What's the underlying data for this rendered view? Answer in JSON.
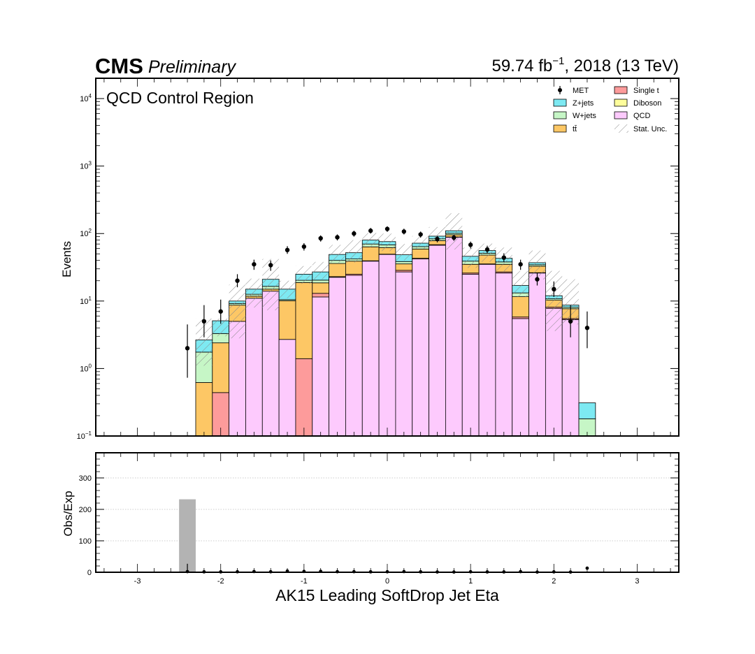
{
  "header": {
    "experiment": "CMS",
    "status": "Preliminary",
    "lumi_prefix": "59.74 fb",
    "lumi_exp": "−1",
    "lumi_suffix": ", 2018 (13 TeV)"
  },
  "region_label": "QCD Control Region",
  "legend": [
    {
      "name": "MET",
      "kind": "marker",
      "color": "#000000"
    },
    {
      "name": "Z+jets",
      "kind": "box",
      "color": "#7de9f2"
    },
    {
      "name": "W+jets",
      "kind": "box",
      "color": "#c6f6c6"
    },
    {
      "name": "tt̄",
      "kind": "box",
      "color": "#fdc765"
    },
    {
      "name": "Single t",
      "kind": "box",
      "color": "#fd9b9b"
    },
    {
      "name": "Diboson",
      "kind": "box",
      "color": "#fdfd9b"
    },
    {
      "name": "QCD",
      "kind": "box",
      "color": "#fdcafd"
    },
    {
      "name": "Stat. Unc.",
      "kind": "hatch",
      "color": "#888888"
    }
  ],
  "colors": {
    "qcd": "#fdcafd",
    "single_t": "#fd9b9b",
    "ttbar": "#fdc765",
    "wjets": "#c6f6c6",
    "zjets": "#7de9f2",
    "diboson": "#fdfd9b",
    "ratio_bar": "#b3b3b3",
    "hatch": "#999999"
  },
  "chart_data": [
    {
      "type": "bar",
      "subtype": "stacked-histogram-log",
      "ylabel": "Events",
      "yscale": "log",
      "ylim": [
        0.1,
        20000
      ],
      "xlim": [
        -3.5,
        3.5
      ],
      "y_tick_labels": [
        {
          "base": "10",
          "exp": "−1",
          "value": 0.1
        },
        {
          "base": "10",
          "exp": "0",
          "value": 1
        },
        {
          "base": "10",
          "exp": "1",
          "value": 10
        },
        {
          "base": "10",
          "exp": "2",
          "value": 100
        },
        {
          "base": "10",
          "exp": "3",
          "value": 1000
        },
        {
          "base": "10",
          "exp": "4",
          "value": 10000
        }
      ],
      "bins": [
        {
          "lo": -2.3,
          "hi": -2.1,
          "qcd": 0,
          "single_t": 0,
          "ttbar": 0.62,
          "wjets": 1.13,
          "zjets": 0.9,
          "unc_lo": 1.1,
          "unc_hi": 5.5
        },
        {
          "lo": -2.1,
          "hi": -1.9,
          "qcd": 0,
          "single_t": 0.44,
          "ttbar": 1.96,
          "wjets": 0.9,
          "zjets": 1.8,
          "unc_lo": 3.0,
          "unc_hi": 5.5
        },
        {
          "lo": -1.9,
          "hi": -1.7,
          "qcd": 5.0,
          "single_t": 0,
          "ttbar": 3.7,
          "wjets": 0.5,
          "zjets": 0.8,
          "unc_lo": 2.8,
          "unc_hi": 17.5
        },
        {
          "lo": -1.7,
          "hi": -1.5,
          "qcd": 11.0,
          "single_t": 0,
          "ttbar": 0.8,
          "wjets": 0.8,
          "zjets": 2.4,
          "unc_lo": 8.0,
          "unc_hi": 21.5
        },
        {
          "lo": -1.5,
          "hi": -1.3,
          "qcd": 14.0,
          "single_t": 0,
          "ttbar": 1.0,
          "wjets": 1.5,
          "zjets": 4.5,
          "unc_lo": 7.3,
          "unc_hi": 42.0
        },
        {
          "lo": -1.3,
          "hi": -1.1,
          "qcd": 2.7,
          "single_t": 0,
          "ttbar": 7.4,
          "wjets": 0.4,
          "zjets": 4.5,
          "unc_lo": 11.0,
          "unc_hi": 20.0
        },
        {
          "lo": -1.1,
          "hi": -0.9,
          "qcd": 0,
          "single_t": 1.4,
          "ttbar": 17.4,
          "wjets": 1.5,
          "zjets": 4.7,
          "unc_lo": 18.0,
          "unc_hi": 33.0
        },
        {
          "lo": -0.9,
          "hi": -0.7,
          "qcd": 11.5,
          "single_t": 1.5,
          "ttbar": 5.6,
          "wjets": 1.8,
          "zjets": 6.6,
          "unc_lo": 21.0,
          "unc_hi": 38.0
        },
        {
          "lo": -0.7,
          "hi": -0.5,
          "qcd": 22.5,
          "single_t": 0.5,
          "ttbar": 13.0,
          "wjets": 4.0,
          "zjets": 9.0,
          "unc_lo": 37.0,
          "unc_hi": 68.0
        },
        {
          "lo": -0.5,
          "hi": -0.3,
          "qcd": 24.0,
          "single_t": 1.0,
          "ttbar": 14.0,
          "wjets": 3.0,
          "zjets": 10.0,
          "unc_lo": 37.0,
          "unc_hi": 80.0
        },
        {
          "lo": -0.3,
          "hi": -0.1,
          "qcd": 39.0,
          "single_t": 0.5,
          "ttbar": 24.0,
          "wjets": 6.5,
          "zjets": 10.0,
          "unc_lo": 63.0,
          "unc_hi": 102.0
        },
        {
          "lo": -0.1,
          "hi": 0.1,
          "qcd": 49.0,
          "single_t": 0.5,
          "ttbar": 12.5,
          "wjets": 6.0,
          "zjets": 8.0,
          "unc_lo": 55.0,
          "unc_hi": 100.0
        },
        {
          "lo": 0.1,
          "hi": 0.3,
          "qcd": 27.0,
          "single_t": 1.5,
          "ttbar": 7.0,
          "wjets": 3.0,
          "zjets": 10.0,
          "unc_lo": 40.0,
          "unc_hi": 70.0
        },
        {
          "lo": 0.3,
          "hi": 0.5,
          "qcd": 42.0,
          "single_t": 1.0,
          "ttbar": 16.0,
          "wjets": 5.0,
          "zjets": 8.0,
          "unc_lo": 60.0,
          "unc_hi": 92.0
        },
        {
          "lo": 0.5,
          "hi": 0.7,
          "qcd": 67.0,
          "single_t": 1.5,
          "ttbar": 10.0,
          "wjets": 5.0,
          "zjets": 8.0,
          "unc_lo": 75.0,
          "unc_hi": 125.0
        },
        {
          "lo": 0.7,
          "hi": 0.9,
          "qcd": 88.0,
          "single_t": 1.0,
          "ttbar": 7.0,
          "wjets": 5.0,
          "zjets": 9.0,
          "unc_lo": 58.0,
          "unc_hi": 200.0
        },
        {
          "lo": 0.9,
          "hi": 1.1,
          "qcd": 25.0,
          "single_t": 1.0,
          "ttbar": 9.0,
          "wjets": 4.0,
          "zjets": 7.0,
          "unc_lo": 31.0,
          "unc_hi": 62.0
        },
        {
          "lo": 1.1,
          "hi": 1.3,
          "qcd": 35.0,
          "single_t": 0.5,
          "ttbar": 12.5,
          "wjets": 3.0,
          "zjets": 5.0,
          "unc_lo": 38.0,
          "unc_hi": 71.0
        },
        {
          "lo": 1.3,
          "hi": 1.5,
          "qcd": 26.0,
          "single_t": 1.0,
          "ttbar": 8.0,
          "wjets": 3.0,
          "zjets": 5.0,
          "unc_lo": 27.0,
          "unc_hi": 62.0
        },
        {
          "lo": 1.5,
          "hi": 1.7,
          "qcd": 5.5,
          "single_t": 0.3,
          "ttbar": 5.8,
          "wjets": 1.6,
          "zjets": 3.8,
          "unc_lo": 11.5,
          "unc_hi": 28.0
        },
        {
          "lo": 1.7,
          "hi": 1.9,
          "qcd": 26.0,
          "single_t": 0.3,
          "ttbar": 6.5,
          "wjets": 1.7,
          "zjets": 2.5,
          "unc_lo": 21.0,
          "unc_hi": 56.0
        },
        {
          "lo": 1.9,
          "hi": 2.1,
          "qcd": 7.8,
          "single_t": 0.3,
          "ttbar": 2.2,
          "wjets": 0.5,
          "zjets": 1.2,
          "unc_lo": 3.6,
          "unc_hi": 28.0
        },
        {
          "lo": 2.1,
          "hi": 2.3,
          "qcd": 5.3,
          "single_t": 0.2,
          "ttbar": 2.2,
          "wjets": 0.4,
          "zjets": 0.6,
          "unc_lo": 4.5,
          "unc_hi": 21.0
        },
        {
          "lo": 2.3,
          "hi": 2.5,
          "qcd": 0,
          "single_t": 0,
          "ttbar": 0,
          "wjets": 0.18,
          "zjets": 0.13,
          "unc_lo": 0,
          "unc_hi": 0
        }
      ],
      "data_points": [
        {
          "x": -2.4,
          "y": 2.0,
          "lo": 0.73,
          "hi": 4.5
        },
        {
          "x": -2.2,
          "y": 5.0,
          "lo": 2.9,
          "hi": 8.7
        },
        {
          "x": -2.0,
          "y": 7.0,
          "lo": 4.6,
          "hi": 10.5
        },
        {
          "x": -1.8,
          "y": 20.0,
          "lo": 16.0,
          "hi": 25.0
        },
        {
          "x": -1.6,
          "y": 35.0,
          "lo": 29.0,
          "hi": 41.0
        },
        {
          "x": -1.4,
          "y": 34.0,
          "lo": 28.0,
          "hi": 40.0
        },
        {
          "x": -1.2,
          "y": 57.0,
          "lo": 50.0,
          "hi": 65.0
        },
        {
          "x": -1.0,
          "y": 64.0,
          "lo": 56.0,
          "hi": 72.0
        },
        {
          "x": -0.8,
          "y": 85.0,
          "lo": 76.0,
          "hi": 94.0
        },
        {
          "x": -0.6,
          "y": 88.0,
          "lo": 79.0,
          "hi": 97.0
        },
        {
          "x": -0.4,
          "y": 100.0,
          "lo": 90.0,
          "hi": 110.0
        },
        {
          "x": -0.2,
          "y": 110.0,
          "lo": 100.0,
          "hi": 121.0
        },
        {
          "x": 0.0,
          "y": 117.0,
          "lo": 106.0,
          "hi": 128.0
        },
        {
          "x": 0.2,
          "y": 107.0,
          "lo": 97.0,
          "hi": 118.0
        },
        {
          "x": 0.4,
          "y": 97.0,
          "lo": 87.0,
          "hi": 107.0
        },
        {
          "x": 0.6,
          "y": 83.0,
          "lo": 74.0,
          "hi": 92.0
        },
        {
          "x": 0.8,
          "y": 87.0,
          "lo": 78.0,
          "hi": 96.0
        },
        {
          "x": 1.0,
          "y": 68.0,
          "lo": 60.0,
          "hi": 76.0
        },
        {
          "x": 1.2,
          "y": 58.0,
          "lo": 51.0,
          "hi": 66.0
        },
        {
          "x": 1.4,
          "y": 44.0,
          "lo": 38.0,
          "hi": 51.0
        },
        {
          "x": 1.6,
          "y": 35.0,
          "lo": 29.0,
          "hi": 41.0
        },
        {
          "x": 1.8,
          "y": 21.0,
          "lo": 17.0,
          "hi": 26.0
        },
        {
          "x": 2.0,
          "y": 15.0,
          "lo": 11.5,
          "hi": 19.5
        },
        {
          "x": 2.2,
          "y": 5.0,
          "lo": 2.9,
          "hi": 8.7
        },
        {
          "x": 2.4,
          "y": 4.0,
          "lo": 2.0,
          "hi": 7.0
        }
      ]
    },
    {
      "type": "bar",
      "subtype": "ratio",
      "ylabel": "Obs/Exp",
      "xlabel": "AK15 Leading SoftDrop Jet Eta",
      "ylim": [
        0,
        380
      ],
      "xlim": [
        -3.5,
        3.5
      ],
      "grid": true,
      "y_ticks": [
        0,
        100,
        200,
        300
      ],
      "y_tick_labels": [
        "0",
        "100",
        "200",
        "300"
      ],
      "x_ticks": [
        -3,
        -2,
        -1,
        0,
        1,
        2,
        3
      ],
      "x_tick_labels": [
        "-3",
        "-2",
        "-1",
        "0",
        "1",
        "2",
        "3"
      ],
      "bars": [
        {
          "lo": -2.5,
          "hi": -2.3,
          "value": 232
        }
      ],
      "ratio_points": [
        {
          "x": -2.4,
          "y": 2,
          "err": 25
        },
        {
          "x": -2.2,
          "y": 1.4
        },
        {
          "x": -2.0,
          "y": 1.2
        },
        {
          "x": -1.8,
          "y": 1.6
        },
        {
          "x": -1.6,
          "y": 2.3
        },
        {
          "x": -1.4,
          "y": 1.6
        },
        {
          "x": -1.2,
          "y": 3.8
        },
        {
          "x": -1.0,
          "y": 2.6
        },
        {
          "x": -0.8,
          "y": 3.0
        },
        {
          "x": -0.6,
          "y": 1.8
        },
        {
          "x": -0.4,
          "y": 1.9
        },
        {
          "x": -0.2,
          "y": 1.4
        },
        {
          "x": 0.0,
          "y": 1.5
        },
        {
          "x": 0.2,
          "y": 2.2
        },
        {
          "x": 0.4,
          "y": 1.4
        },
        {
          "x": 0.6,
          "y": 0.9
        },
        {
          "x": 0.8,
          "y": 0.8
        },
        {
          "x": 1.0,
          "y": 1.5
        },
        {
          "x": 1.2,
          "y": 1.1
        },
        {
          "x": 1.4,
          "y": 1.1
        },
        {
          "x": 1.6,
          "y": 2.1
        },
        {
          "x": 1.8,
          "y": 0.6
        },
        {
          "x": 2.0,
          "y": 1.3
        },
        {
          "x": 2.2,
          "y": 0.6
        },
        {
          "x": 2.4,
          "y": 13,
          "err": 3
        }
      ]
    }
  ]
}
